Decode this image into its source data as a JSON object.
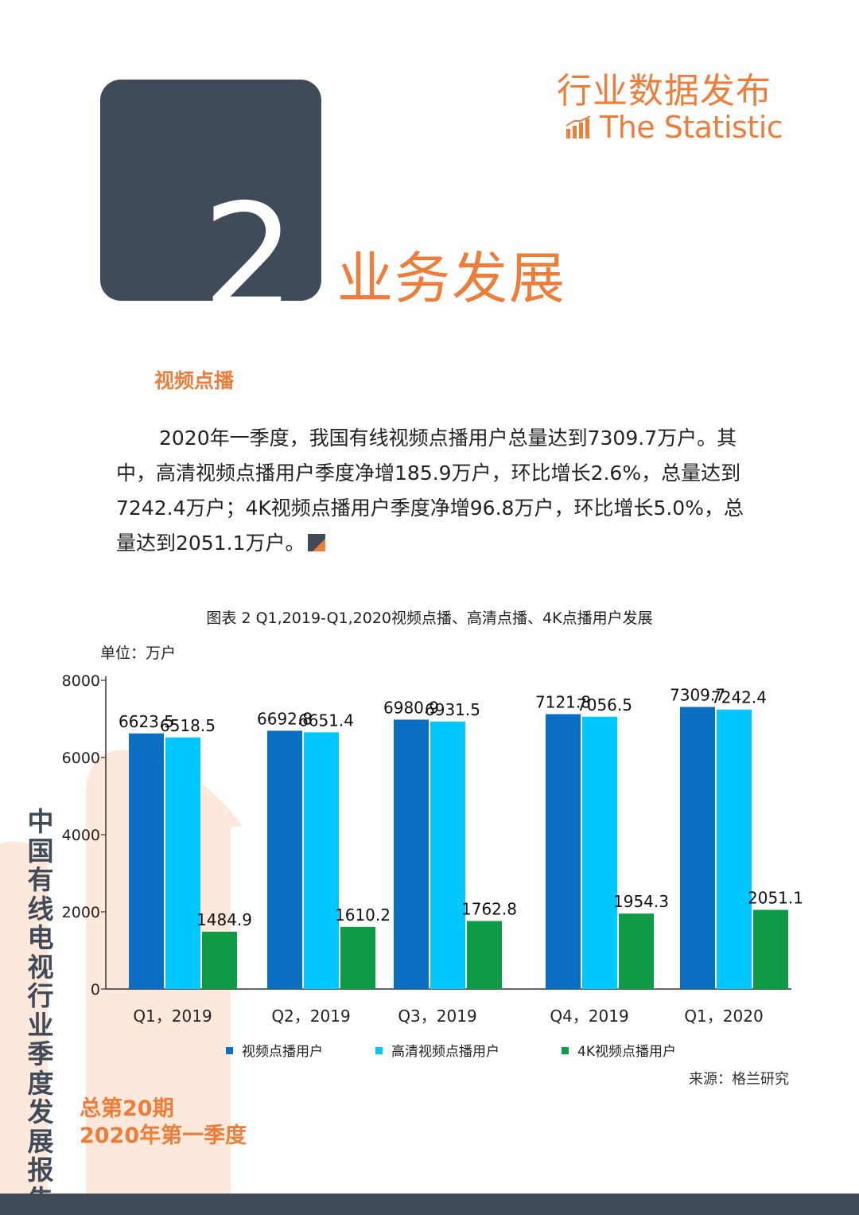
{
  "header": {
    "brand_cn": "行业数据发布",
    "brand_en": "The Statistic",
    "chapter_number": "2",
    "chapter_title": "业务发展"
  },
  "section": {
    "heading": "视频点播",
    "paragraph": "2020年一季度，我国有线视频点播用户总量达到7309.7万户。其中，高清视频点播用户季度净增185.9万户，环比增长2.6%，总量达到7242.4万户；4K视频点播用户季度净增96.8万户，环比增长5.0%，总量达到2051.1万户。"
  },
  "chart_caption": "图表 2 Q1,2019-Q1,2020视频点播、高清点播、4K点播用户发展",
  "unit_label": "单位：万户",
  "source_label": "来源：格兰研究",
  "chart_data": {
    "type": "bar",
    "categories": [
      "Q1，2019",
      "Q2，2019",
      "Q3，2019",
      "Q4，2019",
      "Q1，2020"
    ],
    "series": [
      {
        "name": "视频点播用户",
        "values": [
          6623.5,
          6692.8,
          6980.9,
          7121.8,
          7309.7
        ],
        "color": "#0a6fc2"
      },
      {
        "name": "高清视频点播用户",
        "values": [
          6518.5,
          6651.4,
          6931.5,
          7056.5,
          7242.4
        ],
        "color": "#00c8ff"
      },
      {
        "name": "4K视频点播用户",
        "values": [
          1484.9,
          1610.2,
          1762.8,
          1954.3,
          2051.1
        ],
        "color": "#0f9a45"
      }
    ],
    "yticks": [
      0,
      2000,
      4000,
      6000,
      8000
    ],
    "ylim": [
      0,
      8000
    ],
    "legend_position": "bottom",
    "grid": false
  },
  "sidebar": {
    "vertical_title": "中国有线电视行业季度发展报告",
    "issue_number": "总第20期",
    "issue_quarter": "2020年第一季度"
  },
  "colors": {
    "accent": "#ee7d3a",
    "dark": "#3f4b58",
    "decor": "#fde8dc"
  }
}
